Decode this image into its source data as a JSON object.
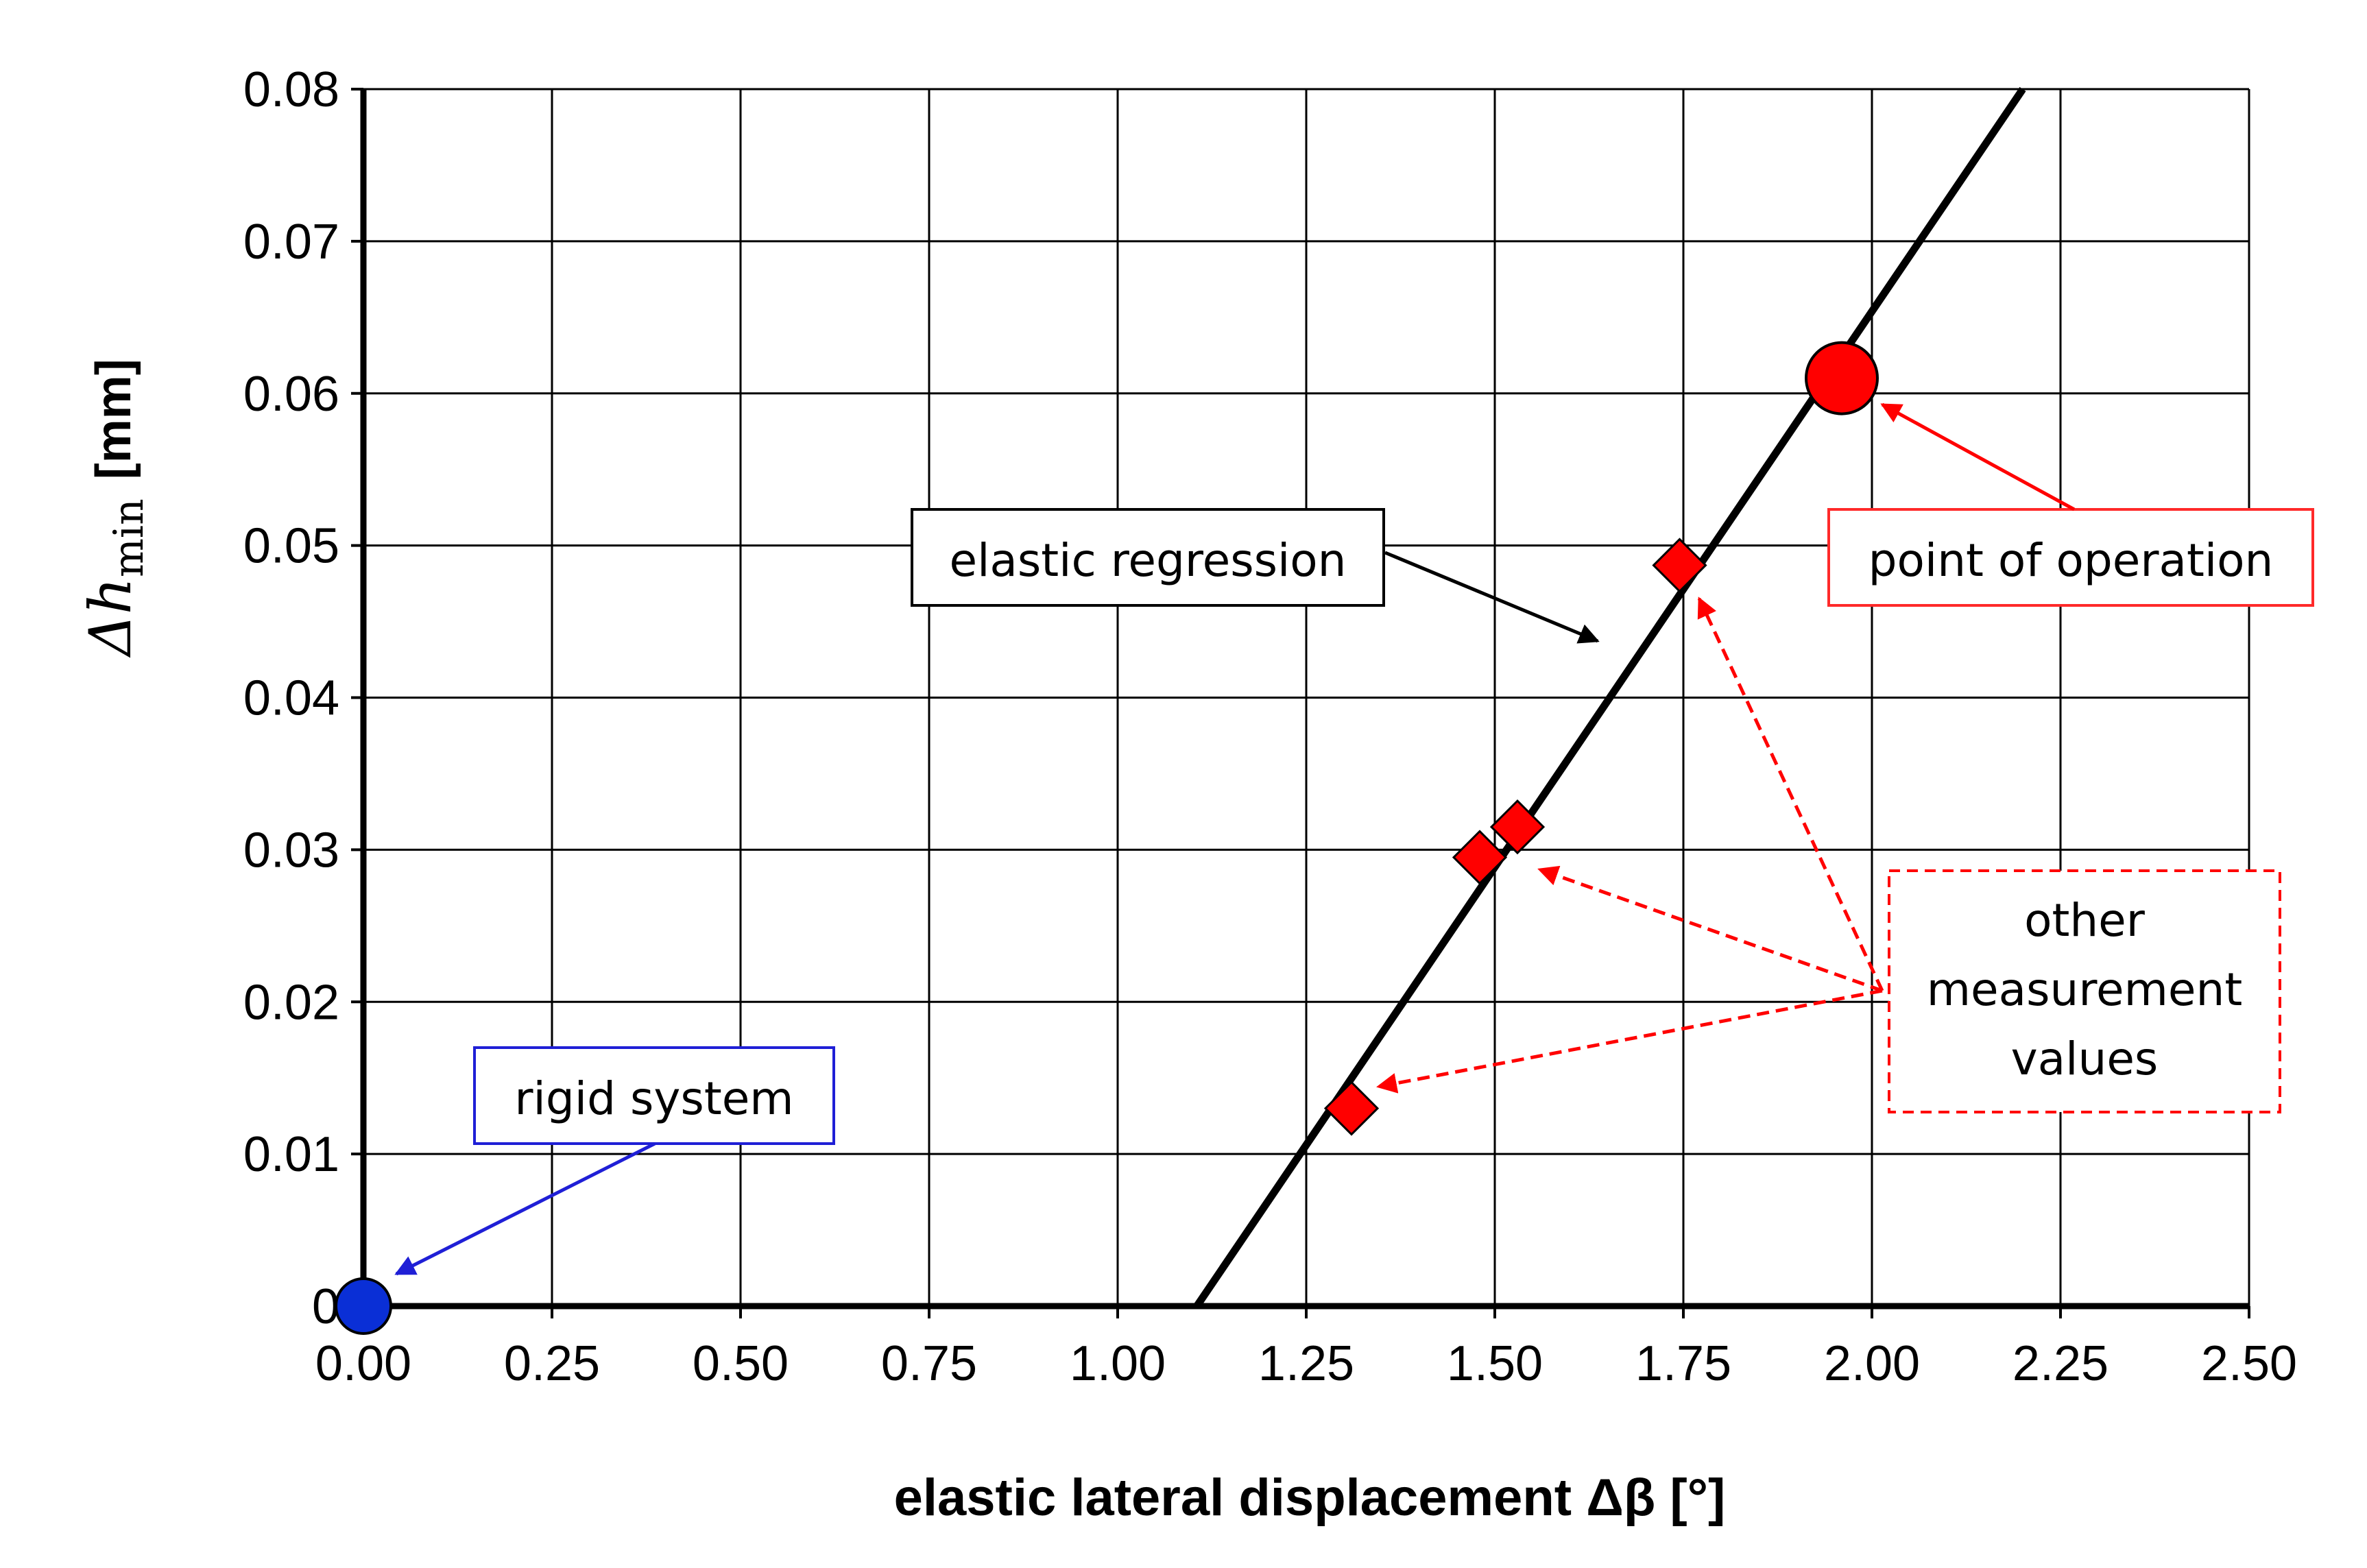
{
  "chart_data": {
    "type": "scatter",
    "xlabel": "elastic lateral displacement Δβ [°]",
    "ylabel": "Δh",
    "ylabel_sub": "min",
    "ylabel_unit": "[mm]",
    "xlim": [
      0,
      2.5
    ],
    "ylim": [
      0,
      0.08
    ],
    "x_ticks": [
      "0.00",
      "0.25",
      "0.50",
      "0.75",
      "1.00",
      "1.25",
      "1.50",
      "1.75",
      "2.00",
      "2.25",
      "2.50"
    ],
    "y_ticks": [
      "0",
      "0.01",
      "0.02",
      "0.03",
      "0.04",
      "0.05",
      "0.06",
      "0.07",
      "0.08"
    ],
    "grid": true,
    "regression_line": {
      "x": [
        1.105,
        2.2
      ],
      "y": [
        0,
        0.08
      ]
    },
    "rigid_point": {
      "x": 0.0,
      "y": 0.0
    },
    "operation_point": {
      "x": 1.96,
      "y": 0.061
    },
    "measurements": [
      {
        "x": 1.31,
        "y": 0.013
      },
      {
        "x": 1.48,
        "y": 0.0295
      },
      {
        "x": 1.53,
        "y": 0.0315
      },
      {
        "x": 1.745,
        "y": 0.0487
      }
    ],
    "annotations": {
      "regression": "elastic regression",
      "operation": "point of operation",
      "rigid": "rigid system",
      "measure_line1": "other",
      "measure_line2": "measurement",
      "measure_line3": "values"
    },
    "colors": {
      "regression": "#000000",
      "operation": "#ff0000",
      "rigid": "#0a2fd6",
      "measurement": "#ff0000",
      "rigid_box": "#1f1fd6",
      "operation_box": "#ff2a2a"
    }
  }
}
